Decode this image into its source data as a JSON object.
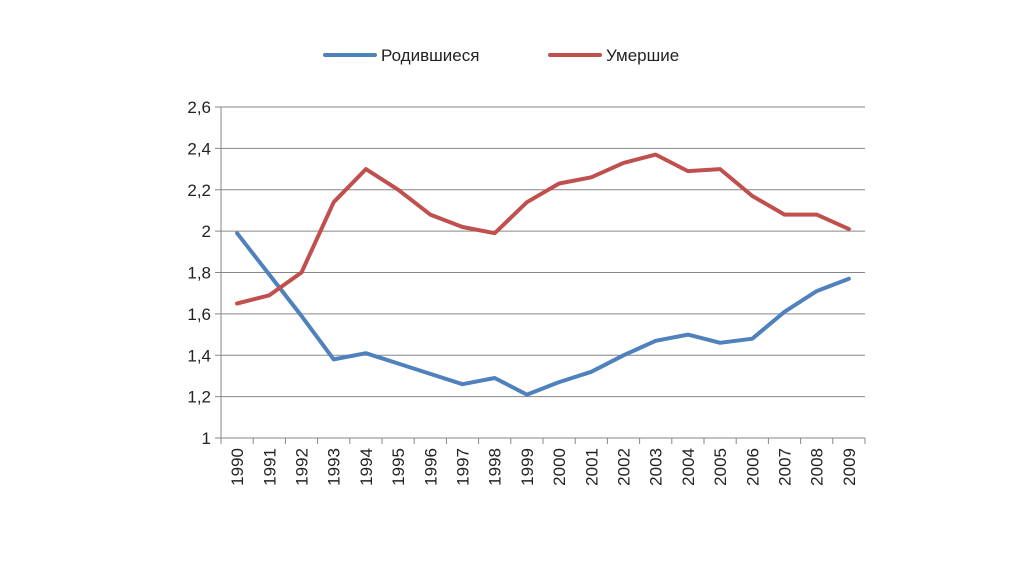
{
  "chart_data": {
    "type": "line",
    "title": "",
    "xlabel": "",
    "ylabel": "",
    "x": [
      "1990",
      "1991",
      "1992",
      "1993",
      "1994",
      "1995",
      "1996",
      "1997",
      "1998",
      "1999",
      "2000",
      "2001",
      "2002",
      "2003",
      "2004",
      "2005",
      "2006",
      "2007",
      "2008",
      "2009"
    ],
    "ylim": [
      1,
      2.6
    ],
    "y_ticks": [
      "1",
      "1,2",
      "1,4",
      "1,6",
      "1,8",
      "2",
      "2,2",
      "2,4",
      "2,6"
    ],
    "y_tick_values": [
      1,
      1.2,
      1.4,
      1.6,
      1.8,
      2.0,
      2.2,
      2.4,
      2.6
    ],
    "grid": true,
    "legend_position": "top-center",
    "series": [
      {
        "name": "Родившиеся",
        "color": "#4f81bd",
        "values": [
          1.99,
          1.79,
          1.59,
          1.38,
          1.41,
          1.36,
          1.31,
          1.26,
          1.29,
          1.21,
          1.27,
          1.32,
          1.4,
          1.47,
          1.5,
          1.46,
          1.48,
          1.61,
          1.71,
          1.77
        ]
      },
      {
        "name": "Умершие",
        "color": "#c0504d",
        "values": [
          1.65,
          1.69,
          1.8,
          2.14,
          2.3,
          2.2,
          2.08,
          2.02,
          1.99,
          2.14,
          2.23,
          2.26,
          2.33,
          2.37,
          2.29,
          2.3,
          2.17,
          2.08,
          2.08,
          2.01
        ]
      }
    ]
  }
}
